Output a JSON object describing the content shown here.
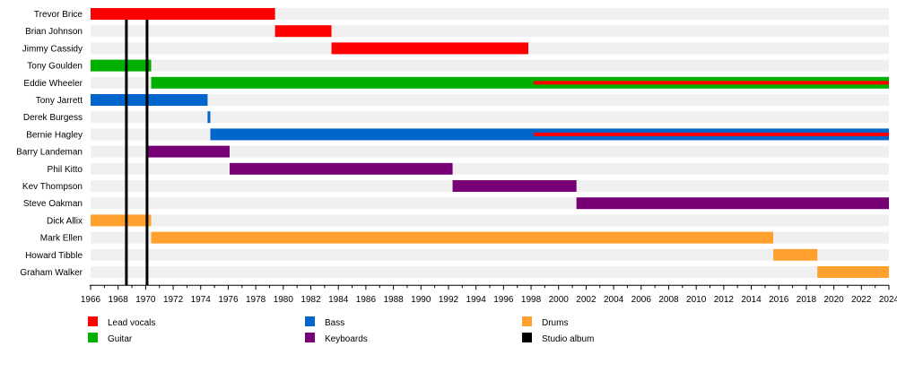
{
  "chart_data": {
    "type": "timeline",
    "title": "",
    "xlim": [
      1966,
      2024
    ],
    "x_ticks": [
      1966,
      1968,
      1970,
      1972,
      1974,
      1976,
      1978,
      1980,
      1982,
      1984,
      1986,
      1988,
      1990,
      1992,
      1994,
      1996,
      1998,
      2000,
      2002,
      2004,
      2006,
      2008,
      2010,
      2012,
      2014,
      2016,
      2018,
      2020,
      2022,
      2024
    ],
    "roles": {
      "vocals": {
        "label": "Lead vocals",
        "color": "#ff0000"
      },
      "guitar": {
        "label": "Guitar",
        "color": "#00b000"
      },
      "bass": {
        "label": "Bass",
        "color": "#0066cc"
      },
      "keys": {
        "label": "Keyboards",
        "color": "#770077"
      },
      "drums": {
        "label": "Drums",
        "color": "#ffa02f"
      },
      "album": {
        "label": "Studio album",
        "color": "#000000"
      }
    },
    "legend_order": [
      "vocals",
      "guitar",
      "bass",
      "keys",
      "drums",
      "album"
    ],
    "legend_placement": "bottom",
    "members": [
      {
        "name": "Trevor Brice",
        "spans": [
          {
            "role": "vocals",
            "start": 1966,
            "end": 1979.4
          }
        ]
      },
      {
        "name": "Brian Johnson",
        "spans": [
          {
            "role": "vocals",
            "start": 1979.4,
            "end": 1983.5
          }
        ]
      },
      {
        "name": "Jimmy Cassidy",
        "spans": [
          {
            "role": "vocals",
            "start": 1983.5,
            "end": 1997.8
          }
        ]
      },
      {
        "name": "Tony Goulden",
        "spans": [
          {
            "role": "guitar",
            "start": 1966,
            "end": 1970.4
          }
        ]
      },
      {
        "name": "Eddie Wheeler",
        "spans": [
          {
            "role": "guitar",
            "start": 1970.4,
            "end": 2024
          },
          {
            "role": "vocals",
            "start": 1998.2,
            "end": 2024,
            "secondary": true
          }
        ]
      },
      {
        "name": "Tony Jarrett",
        "spans": [
          {
            "role": "bass",
            "start": 1966,
            "end": 1974.5
          }
        ]
      },
      {
        "name": "Derek Burgess",
        "spans": [
          {
            "role": "bass",
            "start": 1974.5,
            "end": 1974.7
          }
        ]
      },
      {
        "name": "Bernie Hagley",
        "spans": [
          {
            "role": "bass",
            "start": 1974.7,
            "end": 2024
          },
          {
            "role": "vocals",
            "start": 1998.2,
            "end": 2024,
            "secondary": true
          }
        ]
      },
      {
        "name": "Barry Landeman",
        "spans": [
          {
            "role": "keys",
            "start": 1970.1,
            "end": 1976.1
          }
        ]
      },
      {
        "name": "Phil Kitto",
        "spans": [
          {
            "role": "keys",
            "start": 1976.1,
            "end": 1992.3
          }
        ]
      },
      {
        "name": "Kev Thompson",
        "spans": [
          {
            "role": "keys",
            "start": 1992.3,
            "end": 2001.3
          }
        ]
      },
      {
        "name": "Steve Oakman",
        "spans": [
          {
            "role": "keys",
            "start": 2001.3,
            "end": 2024
          }
        ]
      },
      {
        "name": "Dick Allix",
        "spans": [
          {
            "role": "drums",
            "start": 1966,
            "end": 1970.4
          }
        ]
      },
      {
        "name": "Mark Ellen",
        "spans": [
          {
            "role": "drums",
            "start": 1970.4,
            "end": 2015.6
          }
        ]
      },
      {
        "name": "Howard Tibble",
        "spans": [
          {
            "role": "drums",
            "start": 2015.6,
            "end": 2018.8
          }
        ]
      },
      {
        "name": "Graham Walker",
        "spans": [
          {
            "role": "drums",
            "start": 2018.8,
            "end": 2024
          }
        ]
      }
    ],
    "studio_albums": [
      1968.6,
      1970.1
    ]
  }
}
